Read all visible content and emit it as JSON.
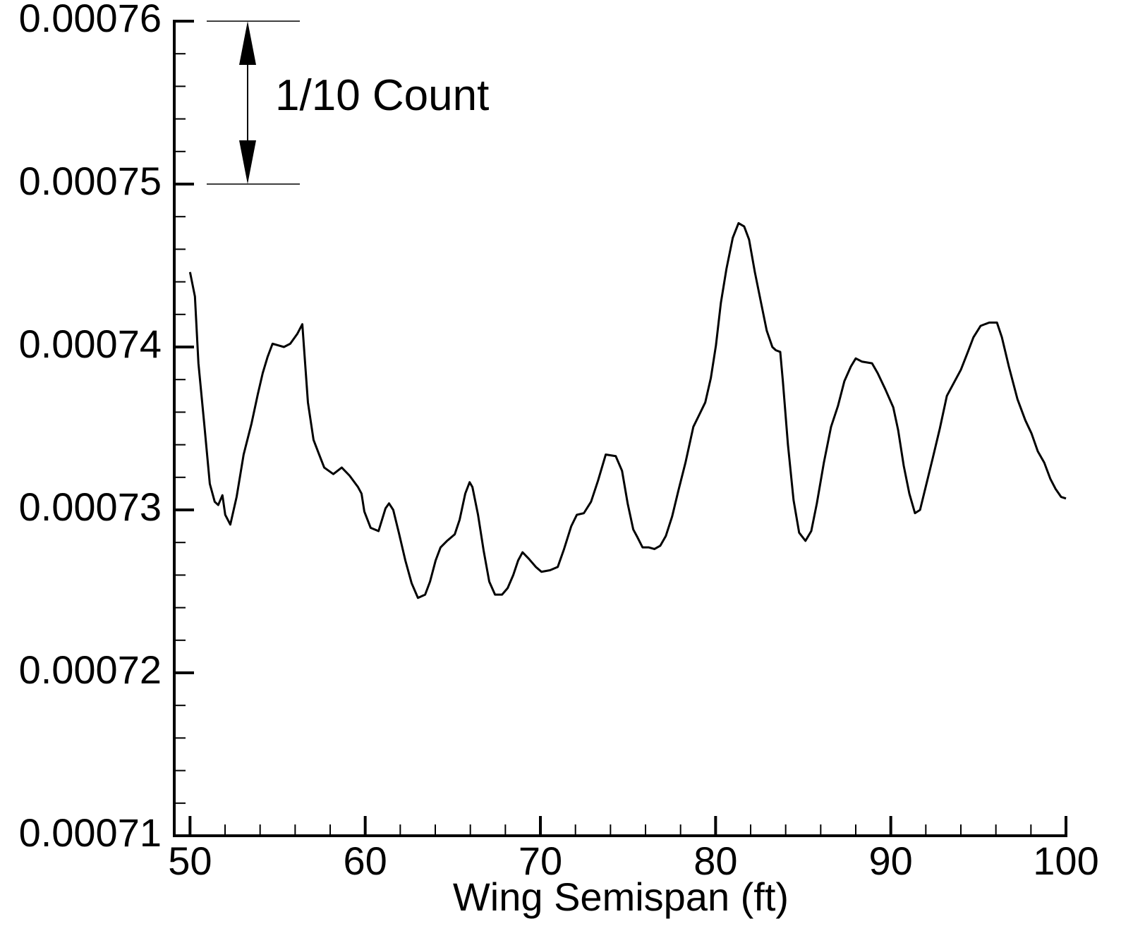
{
  "chart_data": {
    "type": "line",
    "xlabel": "Wing Semispan (ft)",
    "xlim": [
      49.1,
      100
    ],
    "ylim": [
      0.00071,
      0.00076
    ],
    "xticks": [
      50,
      60,
      70,
      80,
      90,
      100
    ],
    "yticks": [
      0.00071,
      0.00072,
      0.00073,
      0.00074,
      0.00075,
      0.00076
    ],
    "xminorticks": [
      52,
      54,
      56,
      58,
      62,
      64,
      66,
      68,
      72,
      74,
      76,
      78,
      82,
      84,
      86,
      88,
      92,
      94,
      96,
      98
    ],
    "yminorticks": [
      0.000712,
      0.000714,
      0.000716,
      0.000718,
      0.000722,
      0.000724,
      0.000726,
      0.000728,
      0.000732,
      0.000734,
      0.000736,
      0.000738,
      0.000742,
      0.000744,
      0.000746,
      0.000748,
      0.000752,
      0.000754,
      0.000756,
      0.000758
    ],
    "grid": false,
    "annotations": [
      {
        "text": "1/10 Count",
        "y": [
          0.00076,
          0.00075
        ]
      }
    ],
    "series": [
      {
        "color": "#000000",
        "x": [
          50.0,
          50.28,
          50.48,
          50.81,
          51.13,
          51.41,
          51.61,
          51.85,
          52.01,
          52.3,
          52.66,
          53.06,
          53.51,
          53.87,
          54.15,
          54.43,
          54.71,
          55.04,
          55.36,
          55.72,
          56.12,
          56.41,
          56.57,
          56.73,
          57.05,
          57.37,
          57.66,
          58.18,
          58.66,
          59.11,
          59.59,
          59.79,
          59.95,
          60.31,
          60.76,
          61.16,
          61.36,
          61.6,
          61.92,
          62.29,
          62.65,
          63.01,
          63.42,
          63.7,
          64.02,
          64.3,
          64.67,
          65.11,
          65.39,
          65.71,
          65.96,
          66.12,
          66.44,
          66.76,
          67.08,
          67.41,
          67.81,
          68.13,
          68.45,
          68.73,
          68.98,
          69.34,
          69.74,
          70.06,
          70.55,
          70.99,
          71.35,
          71.76,
          72.08,
          72.48,
          72.89,
          73.29,
          73.73,
          74.3,
          74.66,
          74.98,
          75.3,
          75.55,
          75.83,
          76.19,
          76.51,
          76.84,
          77.16,
          77.52,
          77.88,
          78.28,
          78.73,
          79.05,
          79.41,
          79.73,
          80.02,
          80.3,
          80.62,
          80.98,
          81.31,
          81.63,
          81.91,
          82.24,
          82.56,
          82.92,
          83.24,
          83.44,
          83.69,
          83.84,
          84.13,
          84.45,
          84.77,
          85.13,
          85.46,
          85.78,
          86.18,
          86.59,
          86.99,
          87.35,
          87.72,
          88.0,
          88.36,
          88.93,
          89.25,
          89.69,
          90.14,
          90.42,
          90.74,
          91.06,
          91.38,
          91.67,
          91.99,
          92.4,
          92.8,
          93.2,
          93.6,
          94.0,
          94.4,
          94.72,
          95.13,
          95.62,
          96.06,
          96.34,
          96.74,
          97.23,
          97.68,
          98.03,
          98.39,
          98.76,
          99.11,
          99.4,
          99.72,
          100.0
        ],
        "values": [
          0.0007446,
          0.0007431,
          0.000739,
          0.0007353,
          0.0007316,
          0.0007305,
          0.0007303,
          0.0007309,
          0.0007297,
          0.0007291,
          0.0007308,
          0.0007334,
          0.0007353,
          0.0007371,
          0.0007384,
          0.0007394,
          0.0007402,
          0.0007401,
          0.00074,
          0.0007402,
          0.0007408,
          0.0007414,
          0.000739,
          0.0007366,
          0.0007343,
          0.0007334,
          0.0007326,
          0.0007322,
          0.0007326,
          0.0007321,
          0.0007314,
          0.000731,
          0.0007299,
          0.0007289,
          0.0007287,
          0.0007301,
          0.0007304,
          0.00073,
          0.0007286,
          0.0007269,
          0.0007255,
          0.0007246,
          0.0007248,
          0.0007256,
          0.0007269,
          0.0007277,
          0.0007281,
          0.0007285,
          0.0007294,
          0.000731,
          0.0007317,
          0.0007314,
          0.0007297,
          0.0007275,
          0.0007256,
          0.0007248,
          0.0007248,
          0.0007252,
          0.000726,
          0.0007269,
          0.0007274,
          0.000727,
          0.0007265,
          0.0007262,
          0.0007263,
          0.0007265,
          0.0007276,
          0.000729,
          0.0007297,
          0.0007298,
          0.0007305,
          0.0007318,
          0.0007334,
          0.0007333,
          0.0007324,
          0.0007304,
          0.0007288,
          0.0007283,
          0.0007277,
          0.0007277,
          0.0007276,
          0.0007278,
          0.0007284,
          0.0007296,
          0.0007312,
          0.0007329,
          0.0007351,
          0.0007358,
          0.0007366,
          0.0007381,
          0.0007401,
          0.0007427,
          0.0007448,
          0.0007467,
          0.0007476,
          0.0007474,
          0.0007466,
          0.0007446,
          0.0007429,
          0.000741,
          0.00074,
          0.0007398,
          0.0007397,
          0.0007379,
          0.000734,
          0.0007306,
          0.0007286,
          0.0007281,
          0.0007287,
          0.0007304,
          0.0007329,
          0.0007351,
          0.0007364,
          0.0007379,
          0.0007388,
          0.0007393,
          0.0007391,
          0.000739,
          0.0007384,
          0.0007374,
          0.0007363,
          0.0007349,
          0.0007327,
          0.000731,
          0.0007298,
          0.00073,
          0.0007314,
          0.0007332,
          0.000735,
          0.000737,
          0.0007378,
          0.0007386,
          0.0007397,
          0.0007406,
          0.0007413,
          0.0007415,
          0.0007415,
          0.0007406,
          0.0007388,
          0.0007368,
          0.0007355,
          0.0007347,
          0.0007336,
          0.0007329,
          0.0007319,
          0.0007313,
          0.0007308,
          0.0007307
        ]
      }
    ]
  }
}
